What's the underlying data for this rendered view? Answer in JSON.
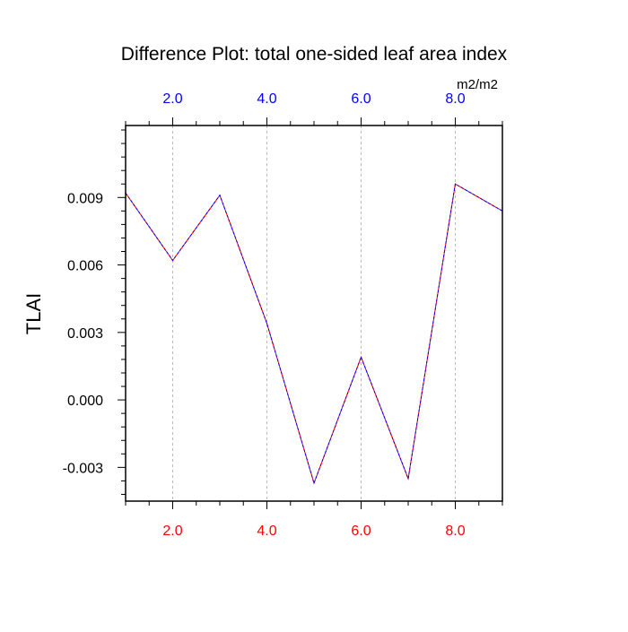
{
  "chart_data": {
    "type": "line",
    "title": "Difference Plot: total one-sided leaf area index",
    "units": "m2/m2",
    "ylabel": "TLAI",
    "xlim": [
      1,
      9
    ],
    "ylim": [
      -0.0045,
      0.0122
    ],
    "x_ticks_bottom": {
      "values": [
        2,
        4,
        6,
        8
      ],
      "labels": [
        "2.0",
        "4.0",
        "6.0",
        "8.0"
      ],
      "color": "#ff0000"
    },
    "x_ticks_top": {
      "values": [
        2,
        4,
        6,
        8
      ],
      "labels": [
        "2.0",
        "4.0",
        "6.0",
        "8.0"
      ],
      "color": "#0000ff"
    },
    "y_ticks": {
      "values": [
        0.009,
        0.006,
        0.003,
        0.0,
        -0.003
      ],
      "labels": [
        "0.009",
        "0.006",
        "0.003",
        "0.000",
        "-0.003"
      ]
    },
    "x_minor_tick_step": 0.5,
    "y_minor_tick_step": 0.0006,
    "grid": "vertical dashed at major x ticks",
    "series": [
      {
        "color": "#ff0000",
        "overlay_color": "#0000ff",
        "x": [
          1,
          2,
          3,
          4,
          5,
          6,
          7,
          8,
          9
        ],
        "values": [
          0.0092,
          0.0062,
          0.0091,
          0.0034,
          -0.0037,
          0.0019,
          -0.0035,
          0.0096,
          0.0084
        ]
      }
    ]
  }
}
